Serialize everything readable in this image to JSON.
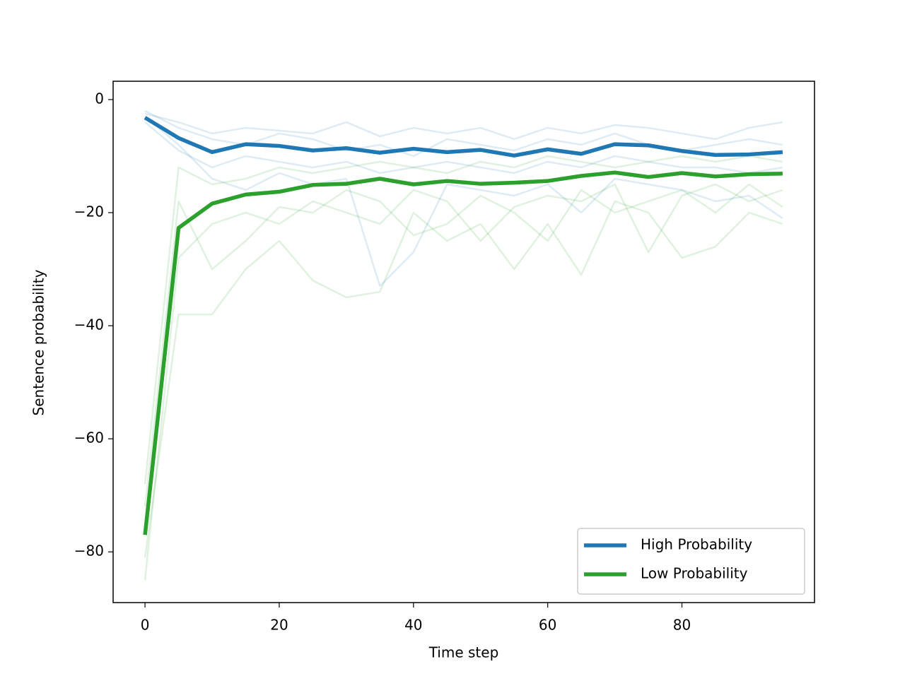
{
  "chart_data": {
    "type": "line",
    "x_label": "Time step",
    "y_label": "Sentence probability",
    "x": [
      0,
      5,
      10,
      15,
      20,
      25,
      30,
      35,
      40,
      45,
      50,
      55,
      60,
      65,
      70,
      75,
      80,
      85,
      90,
      95
    ],
    "series": [
      {
        "name": "High Probability",
        "color": "#1f77b4",
        "values": [
          -3.2,
          -6.8,
          -9.3,
          -7.9,
          -8.2,
          -9.0,
          -8.6,
          -9.4,
          -8.7,
          -9.3,
          -8.9,
          -9.9,
          -8.8,
          -9.6,
          -7.9,
          -8.1,
          -9.1,
          -9.8,
          -9.7,
          -9.3
        ]
      },
      {
        "name": "Low Probability",
        "color": "#2ca02c",
        "values": [
          -77,
          -22.7,
          -18.4,
          -16.8,
          -16.3,
          -15.1,
          -14.9,
          -14.0,
          -15.0,
          -14.4,
          -14.9,
          -14.7,
          -14.4,
          -13.5,
          -12.9,
          -13.7,
          -13.0,
          -13.6,
          -13.2,
          -13.1
        ]
      }
    ],
    "background_series": [
      {
        "color": "#1f77b4",
        "values": [
          -2.5,
          -4,
          -6,
          -5,
          -5.5,
          -6,
          -4,
          -6.5,
          -5,
          -6,
          -5,
          -7,
          -5,
          -6,
          -4.5,
          -5,
          -6,
          -7,
          -5,
          -4
        ]
      },
      {
        "color": "#1f77b4",
        "values": [
          -4,
          -9,
          -12,
          -10,
          -11,
          -12,
          -11,
          -13,
          -12,
          -11,
          -12,
          -13,
          -11,
          -12,
          -10,
          -11,
          -12,
          -12,
          -13,
          -12
        ]
      },
      {
        "color": "#1f77b4",
        "values": [
          -3,
          -8,
          -14,
          -16,
          -13,
          -15,
          -14,
          -33,
          -27,
          -15,
          -16,
          -17,
          -15,
          -20,
          -14,
          -15,
          -16,
          -18,
          -17,
          -21
        ]
      },
      {
        "color": "#1f77b4",
        "values": [
          -2,
          -5,
          -7,
          -8,
          -6,
          -7,
          -9,
          -8,
          -10,
          -7,
          -8,
          -9,
          -7,
          -8,
          -6,
          -8,
          -9,
          -8,
          -7,
          -8
        ]
      },
      {
        "color": "#2ca02c",
        "values": [
          -68,
          -12,
          -15,
          -14,
          -12,
          -13,
          -12,
          -11,
          -12,
          -13,
          -11,
          -12,
          -10,
          -11,
          -12,
          -11,
          -10,
          -11,
          -10,
          -11
        ]
      },
      {
        "color": "#2ca02c",
        "values": [
          -81,
          -38,
          -38,
          -30,
          -25,
          -32,
          -35,
          -34,
          -20,
          -25,
          -22,
          -30,
          -22,
          -31,
          -18,
          -20,
          -28,
          -26,
          -20,
          -22
        ]
      },
      {
        "color": "#2ca02c",
        "values": [
          -85,
          -28,
          -22,
          -20,
          -22,
          -18,
          -20,
          -22,
          -16,
          -18,
          -25,
          -19,
          -17,
          -18,
          -15,
          -27,
          -17,
          -15,
          -18,
          -16
        ]
      },
      {
        "color": "#2ca02c",
        "values": [
          -72,
          -18,
          -30,
          -25,
          -19,
          -20,
          -16,
          -18,
          -24,
          -22,
          -17,
          -20,
          -25,
          -16,
          -20,
          -18,
          -16,
          -20,
          -15,
          -19
        ]
      }
    ],
    "xlim": [
      -4.75,
      99.75
    ],
    "ylim": [
      -88.97,
      3.24
    ],
    "xticks": [
      0,
      20,
      40,
      60,
      80
    ],
    "yticks": [
      {
        "value": 0,
        "label": "0"
      },
      {
        "value": -20,
        "label": "−20"
      },
      {
        "value": -40,
        "label": "−40"
      },
      {
        "value": -60,
        "label": "−60"
      },
      {
        "value": -80,
        "label": "−80"
      }
    ],
    "legend": "lower right"
  }
}
